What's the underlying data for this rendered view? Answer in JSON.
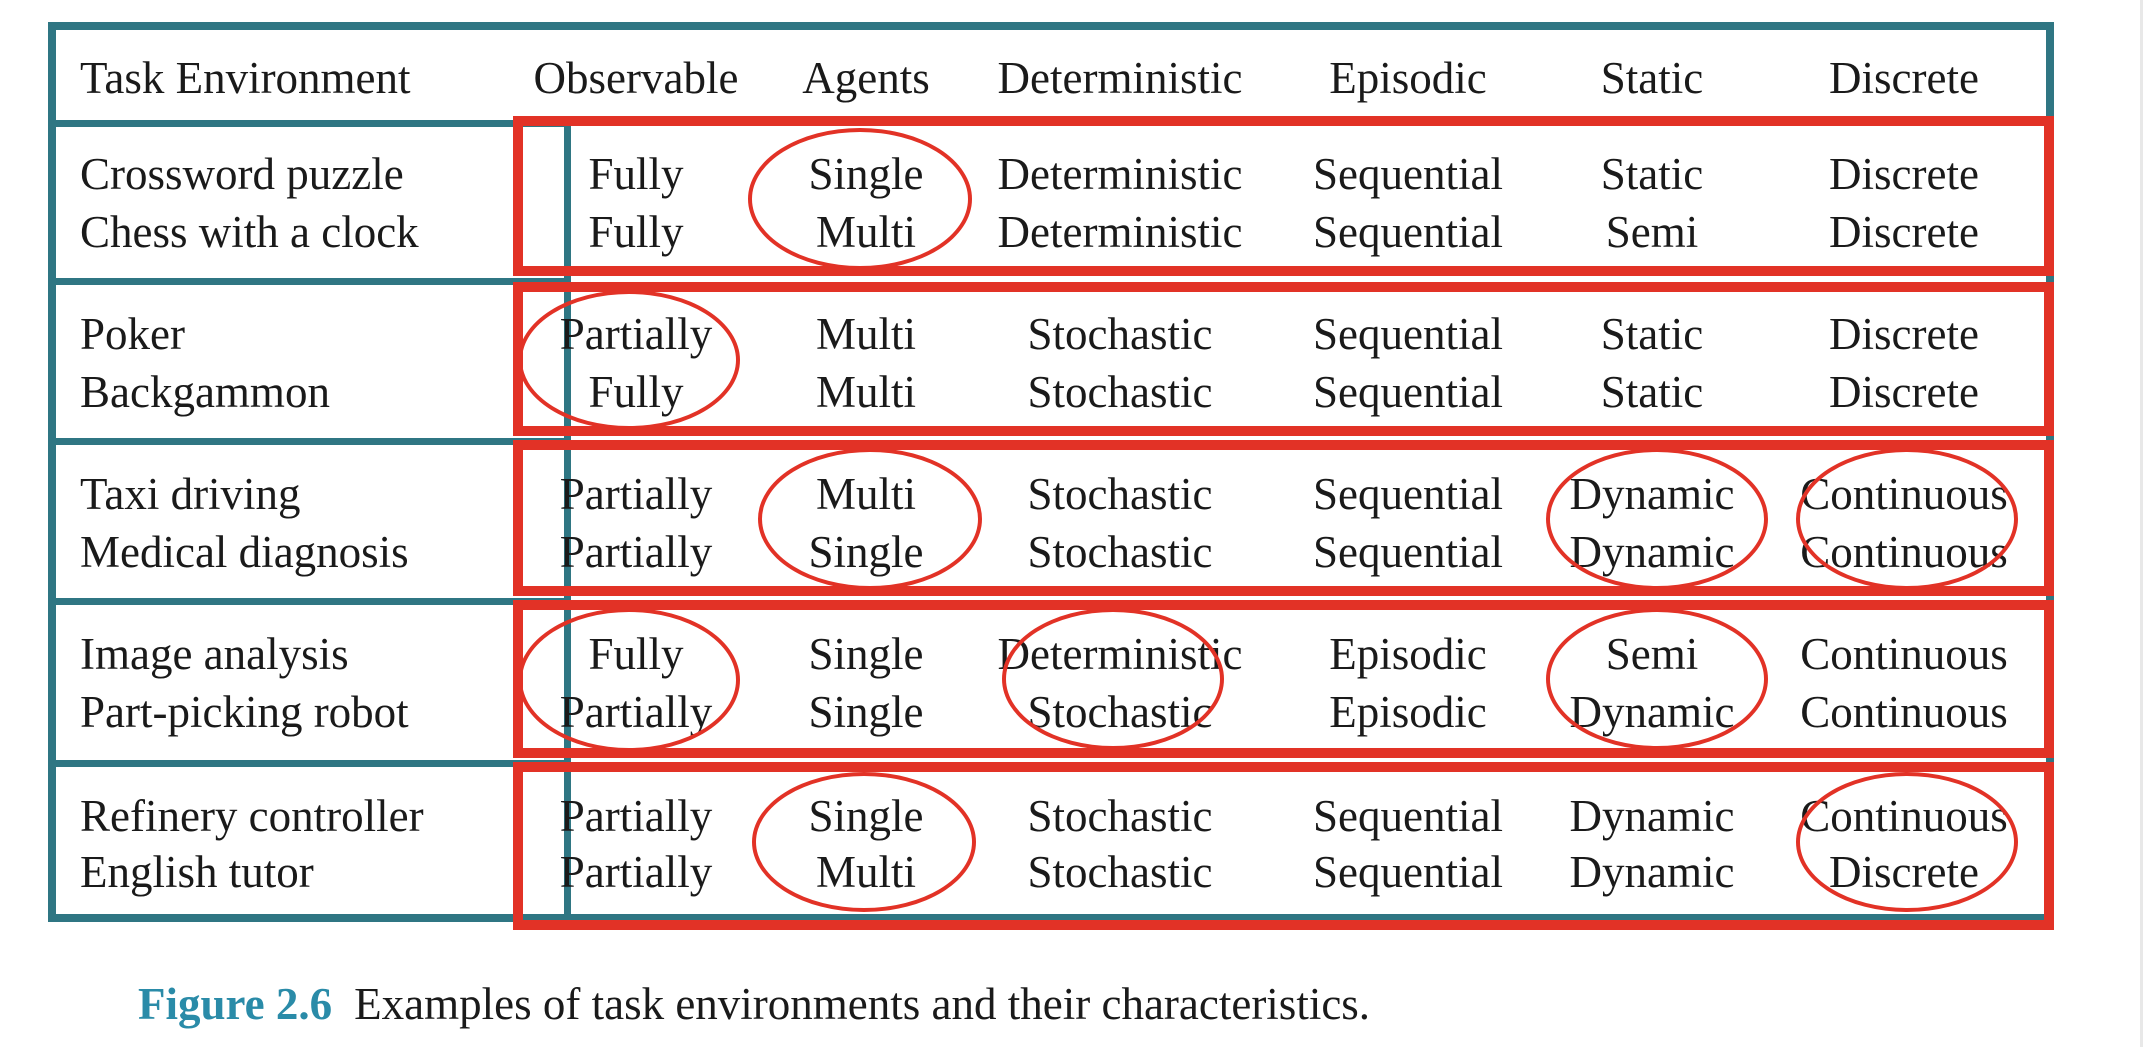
{
  "table": {
    "header": [
      "Task Environment",
      "Observable",
      "Agents",
      "Deterministic",
      "Episodic",
      "Static",
      "Discrete"
    ],
    "groups": [
      {
        "rows": [
          [
            "Crossword puzzle",
            "Fully",
            "Single",
            "Deterministic",
            "Sequential",
            "Static",
            "Discrete"
          ],
          [
            "Chess with a clock",
            "Fully",
            "Multi",
            "Deterministic",
            "Sequential",
            "Semi",
            "Discrete"
          ]
        ]
      },
      {
        "rows": [
          [
            "Poker",
            "Partially",
            "Multi",
            "Stochastic",
            "Sequential",
            "Static",
            "Discrete"
          ],
          [
            "Backgammon",
            "Fully",
            "Multi",
            "Stochastic",
            "Sequential",
            "Static",
            "Discrete"
          ]
        ]
      },
      {
        "rows": [
          [
            "Taxi driving",
            "Partially",
            "Multi",
            "Stochastic",
            "Sequential",
            "Dynamic",
            "Continuous"
          ],
          [
            "Medical diagnosis",
            "Partially",
            "Single",
            "Stochastic",
            "Sequential",
            "Dynamic",
            "Continuous"
          ]
        ]
      },
      {
        "rows": [
          [
            "Image analysis",
            "Fully",
            "Single",
            "Deterministic",
            "Episodic",
            "Semi",
            "Continuous"
          ],
          [
            "Part-picking robot",
            "Partially",
            "Single",
            "Stochastic",
            "Episodic",
            "Dynamic",
            "Continuous"
          ]
        ]
      },
      {
        "rows": [
          [
            "Refinery controller",
            "Partially",
            "Single",
            "Stochastic",
            "Sequential",
            "Dynamic",
            "Continuous"
          ],
          [
            "English tutor",
            "Partially",
            "Multi",
            "Stochastic",
            "Sequential",
            "Dynamic",
            "Discrete"
          ]
        ]
      }
    ]
  },
  "caption": {
    "label": "Figure 2.6",
    "text": "Examples of task environments and their characteristics."
  },
  "colors": {
    "table_border": "#2f7683",
    "annotation": "#e23226",
    "caption_label": "#2a8ba8"
  }
}
